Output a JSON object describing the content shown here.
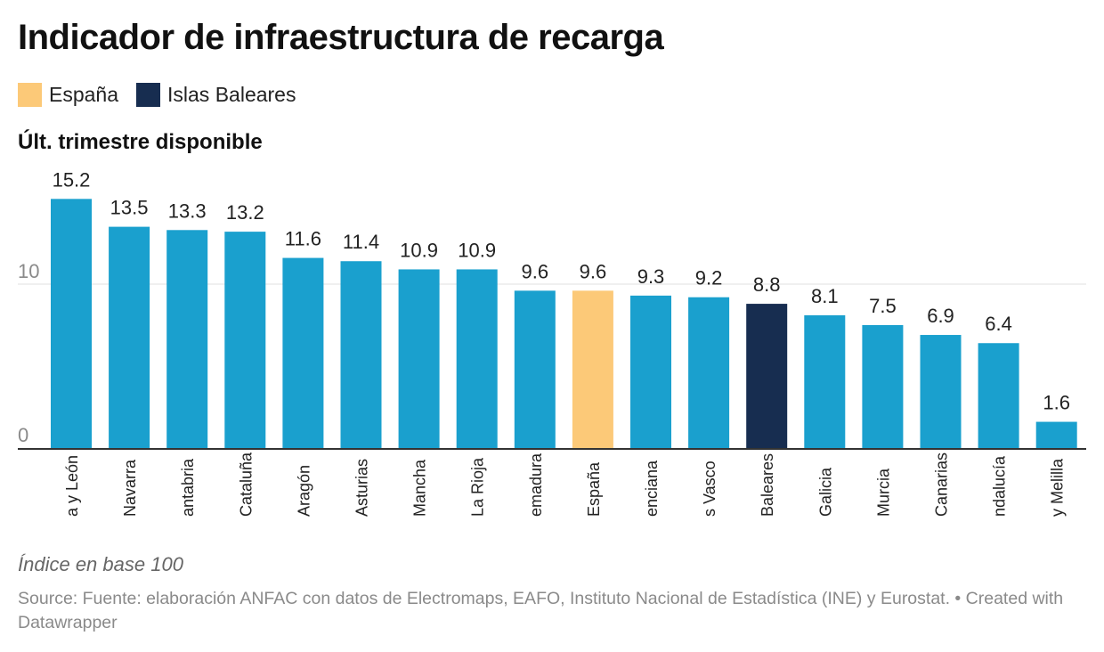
{
  "title": "Indicador de infraestructura de recarga",
  "legend": [
    {
      "label": "España",
      "color": "#fcc978"
    },
    {
      "label": "Islas Baleares",
      "color": "#172d50"
    }
  ],
  "subtitle": "Últ. trimestre disponible",
  "notes": "Índice en base 100",
  "source": "Source: Fuente: elaboración ANFAC con datos de Electromaps, EAFO, Instituto Nacional de Estadística (INE) y Eurostat. • Created with Datawrapper",
  "colors": {
    "default": "#1aa0ce",
    "highlight_spain": "#fcc978",
    "highlight_baleares": "#172d50",
    "gridline": "#e2e2e2",
    "baseline": "#333333"
  },
  "chart_data": {
    "type": "bar",
    "categories": [
      "a y León",
      "Navarra",
      "antabria",
      "Cataluña",
      "Aragón",
      "Asturias",
      "Mancha",
      "La Rioja",
      "emadura",
      "España",
      "enciana",
      "s Vasco",
      "Baleares",
      "Galicia",
      "Murcia",
      "Canarias",
      "ndalucía",
      "y Melilla"
    ],
    "values": [
      15.2,
      13.5,
      13.3,
      13.2,
      11.6,
      11.4,
      10.9,
      10.9,
      9.6,
      9.6,
      9.3,
      9.2,
      8.8,
      8.1,
      7.5,
      6.9,
      6.4,
      1.6
    ],
    "bar_colors": [
      "#1aa0ce",
      "#1aa0ce",
      "#1aa0ce",
      "#1aa0ce",
      "#1aa0ce",
      "#1aa0ce",
      "#1aa0ce",
      "#1aa0ce",
      "#1aa0ce",
      "#fcc978",
      "#1aa0ce",
      "#1aa0ce",
      "#172d50",
      "#1aa0ce",
      "#1aa0ce",
      "#1aa0ce",
      "#1aa0ce",
      "#1aa0ce"
    ],
    "yticks": [
      0,
      10
    ],
    "ylim": [
      0,
      15.2
    ],
    "grid": true,
    "legend_position": "top-left"
  }
}
